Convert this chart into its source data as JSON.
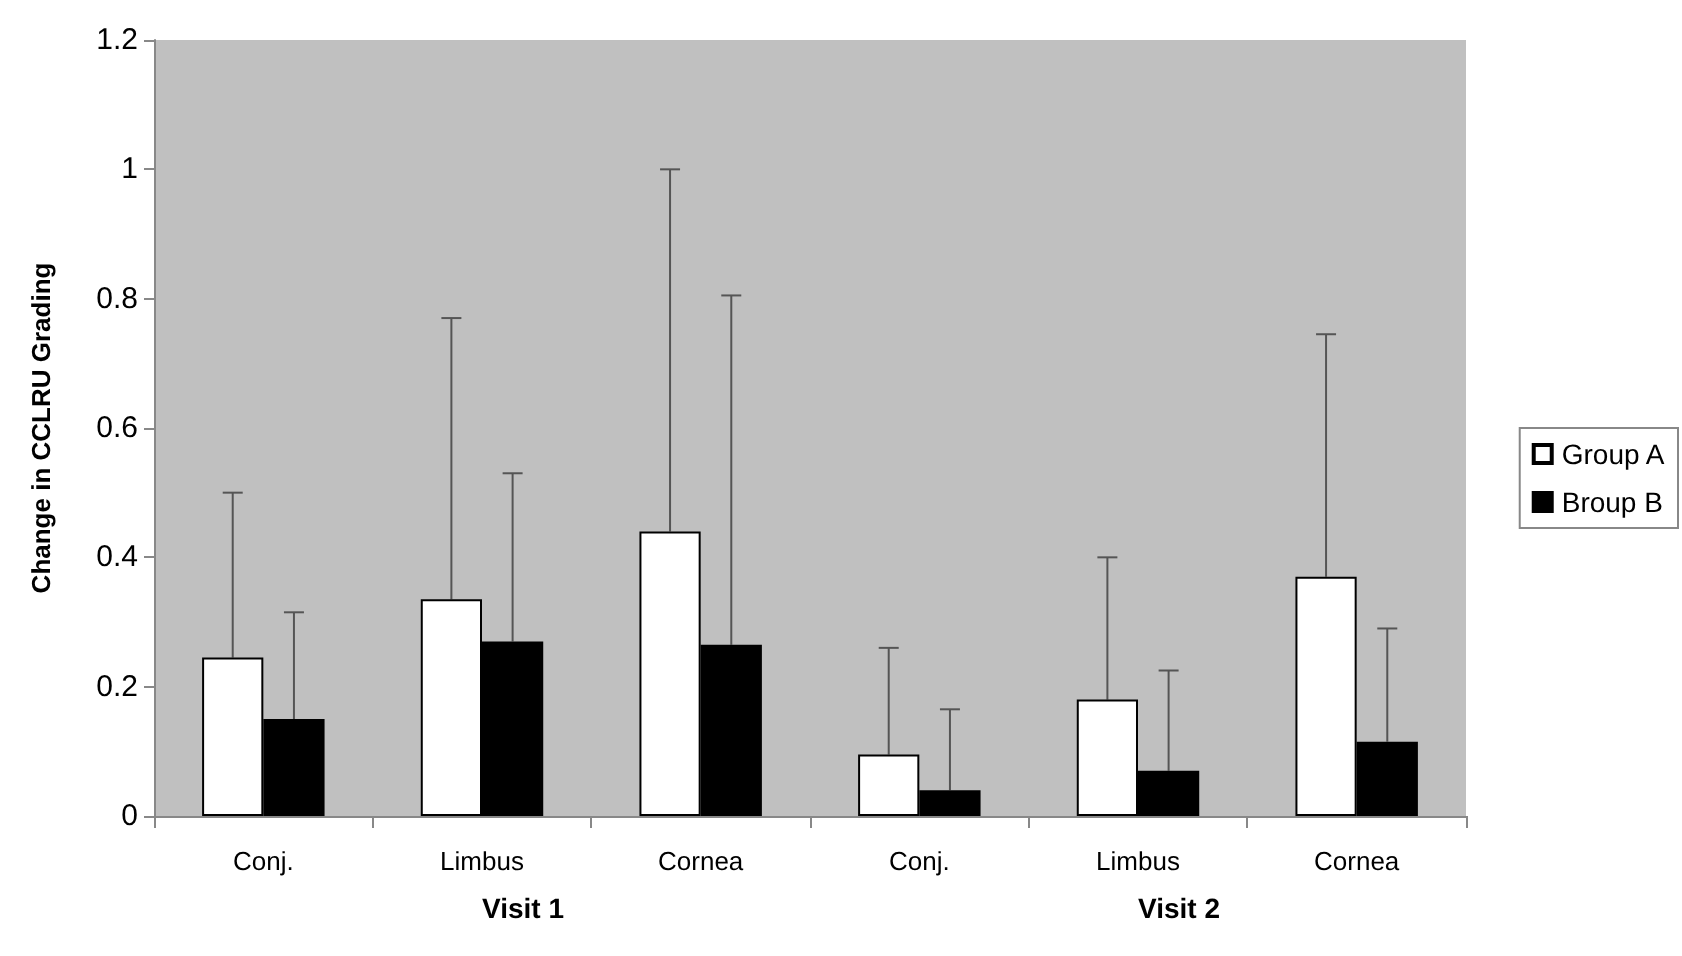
{
  "chart_data": {
    "type": "bar",
    "ylabel": "Change in CCLRU Grading",
    "categories": [
      "Conj.",
      "Limbus",
      "Cornea",
      "Conj.",
      "Limbus",
      "Cornea"
    ],
    "series": [
      {
        "name": "Group A",
        "color": "#ffffff",
        "values": [
          0.245,
          0.335,
          0.44,
          0.095,
          0.18,
          0.37
        ],
        "errors": [
          [
            0.245,
            0.5
          ],
          [
            0.335,
            0.77
          ],
          [
            0.44,
            1.0
          ],
          [
            0.095,
            0.26
          ],
          [
            0.18,
            0.4
          ],
          [
            0.37,
            0.745
          ]
        ]
      },
      {
        "name": "Broup B",
        "color": "#000000",
        "values": [
          0.15,
          0.27,
          0.265,
          0.04,
          0.07,
          0.115
        ],
        "errors": [
          [
            0.15,
            0.315
          ],
          [
            0.27,
            0.53
          ],
          [
            0.265,
            0.805
          ],
          [
            0.04,
            0.165
          ],
          [
            0.07,
            0.225
          ],
          [
            0.115,
            0.29
          ]
        ]
      }
    ],
    "annotations": [
      "Visit 1",
      "Visit 2"
    ],
    "ylim": [
      0,
      1.2
    ],
    "yticks": [
      0,
      0.2,
      0.4,
      0.6,
      0.8,
      1,
      1.2
    ],
    "grid": false,
    "legend": "right"
  }
}
